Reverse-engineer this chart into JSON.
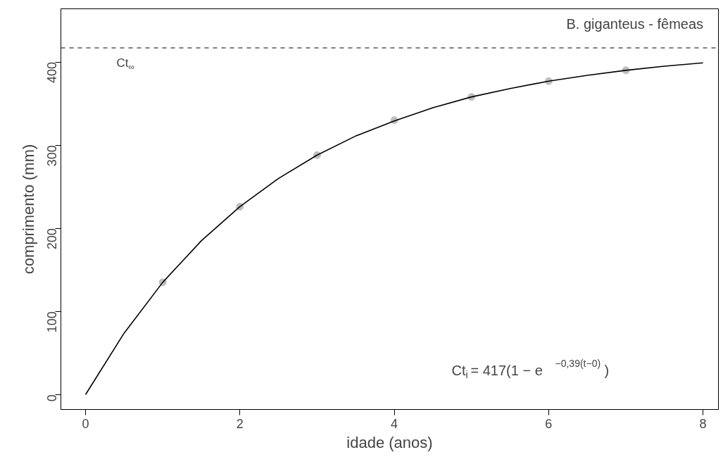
{
  "chart_data": {
    "type": "scatter",
    "xlabel": "idade (anos)",
    "ylabel": "comprimento (mm)",
    "xlim": [
      -0.32,
      8.2
    ],
    "ylim": [
      -18,
      464
    ],
    "xticks": [
      0,
      2,
      4,
      6,
      8
    ],
    "yticks": [
      0,
      100,
      200,
      300,
      400
    ],
    "grid": false,
    "marker": "circle",
    "series": [
      {
        "color": "#bebebe",
        "x": [
          1,
          2,
          3,
          4,
          5,
          6,
          7
        ],
        "values": [
          135,
          226,
          288,
          330,
          358,
          377,
          390
        ]
      },
      {
        "type": "line",
        "color": "#000000",
        "line_style": "solid",
        "marker": "none",
        "x": [
          0,
          0.5,
          1,
          1.5,
          2,
          2.5,
          3,
          3.5,
          4,
          4.5,
          5,
          5.5,
          6,
          6.5,
          7,
          7.5,
          8
        ],
        "values": [
          0,
          74,
          135,
          185,
          226,
          260,
          288,
          311,
          329,
          345,
          358,
          368,
          377,
          384,
          390,
          395,
          399
        ]
      }
    ],
    "ref_lines": [
      {
        "axis": "y",
        "value": 417,
        "label": "Ct$_{∞}$",
        "color": "#000000",
        "line_style": "dashed"
      }
    ],
    "annotations": [
      "B. giganteus - fêmeas",
      "Ct$_{i}$ = 417(1 − e$^{−0,39(t−0)}$)"
    ]
  }
}
